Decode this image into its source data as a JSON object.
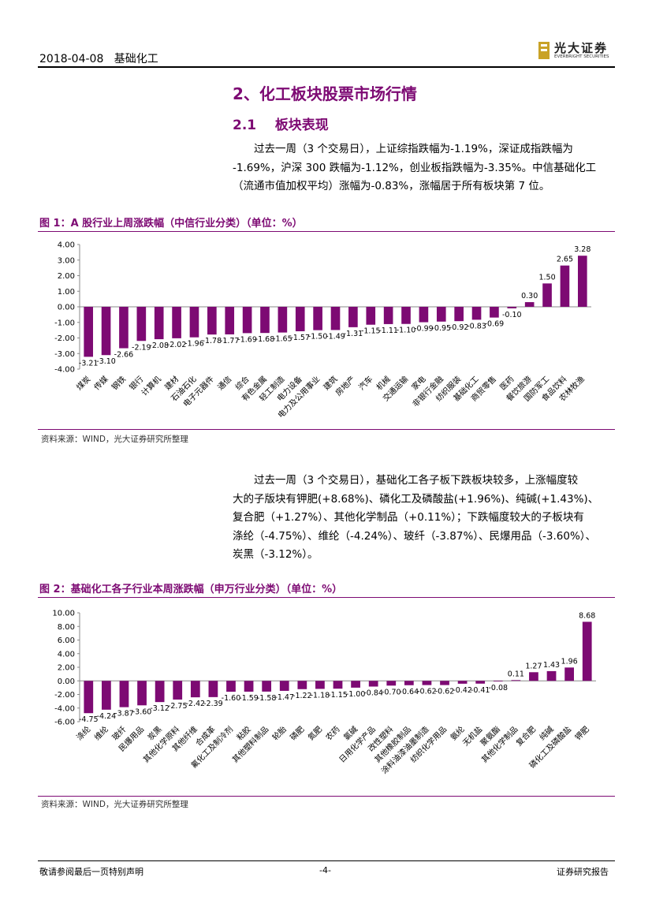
{
  "header": {
    "date": "2018-04-08",
    "category": "基础化工"
  },
  "logo": {
    "name_cn": "光大证券",
    "name_en": "EVERBRIGHT SECURITIES",
    "accent_color": "#c9a227"
  },
  "section": {
    "title": "2、化工板块股票市场行情",
    "sub_num": "2.1",
    "sub_title": "板块表现"
  },
  "para1": {
    "line1": "过去一周（3 个交易日），上证综指跌幅为-1.19%，深证成指跌幅为",
    "line2": "-1.69%，沪深 300 跌幅为-1.12%，创业板指跌幅为-3.35%。中信基础化工",
    "line3": "（流通市值加权平均）涨幅为-0.83%，涨幅居于所有板块第 7 位。"
  },
  "para2": {
    "line1": "过去一周（3 个交易日），基础化工各子板下跌板块较多，上涨幅度较",
    "line2": "大的子版块有钾肥(+8.68%)、磷化工及磷酸盐(+1.96%)、纯碱(+1.43%)、",
    "line3": "复合肥（+1.27%）、其他化学制品（+0.11%）；下跌幅度较大的子板块有",
    "line4": "涤纶（-4.75%）、维纶（-4.24%）、玻纤（-3.87%）、民爆用品（-3.60%）、",
    "line5": "炭黑（-3.12%）。"
  },
  "figure1": {
    "title": "图 1：A 股行业上周涨跌幅（中信行业分类）（单位：%）",
    "source": "资料来源：WIND，光大证券研究所整理"
  },
  "figure2": {
    "title": "图 2：基础化工各子行业本周涨跌幅（申万行业分类）（单位：%）",
    "source": "资料来源：WIND，光大证券研究所整理"
  },
  "chart_data": [
    {
      "type": "bar",
      "title": "A 股行业上周涨跌幅（中信行业分类）（单位：%）",
      "color": "#7d0a73",
      "ylim": [
        -4,
        4
      ],
      "yticks": [
        "4.00",
        "3.00",
        "2.00",
        "1.00",
        "0.00",
        "-1.00",
        "-2.00",
        "-3.00",
        "-4.00"
      ],
      "categories": [
        "煤炭",
        "传媒",
        "钢铁",
        "银行",
        "计算机",
        "建材",
        "石油石化",
        "电子元器件",
        "通信",
        "综合",
        "有色金属",
        "轻工制造",
        "电力设备",
        "电力及公用事业",
        "建筑",
        "房地产",
        "汽车",
        "机械",
        "交通运输",
        "家电",
        "非银行金融",
        "纺织服装",
        "基础化工",
        "商贸零售",
        "医药",
        "餐饮旅游",
        "国防军工",
        "食品饮料",
        "农林牧渔"
      ],
      "values": [
        -3.21,
        -3.1,
        -2.66,
        -2.19,
        -2.08,
        -2.02,
        -1.96,
        -1.78,
        -1.77,
        -1.69,
        -1.68,
        -1.65,
        -1.57,
        -1.5,
        -1.49,
        -1.31,
        -1.15,
        -1.11,
        -1.1,
        -0.99,
        -0.95,
        -0.92,
        -0.83,
        -0.69,
        -0.1,
        0.3,
        1.5,
        2.65,
        3.28
      ],
      "labels": [
        "-3.21",
        "-3.10",
        "-2.66",
        "-2.19",
        "-2.08",
        "-2.02",
        "-1.96",
        "-1.78",
        "-1.77",
        "-1.69",
        "-1.68",
        "-1.65",
        "-1.57",
        "-1.50",
        "-1.49",
        "-1.31",
        "-1.15",
        "-1.11",
        "-1.10",
        "-0.99",
        "-0.95",
        "-0.92",
        "-0.83",
        "-0.69",
        "-0.10",
        "0.30",
        "1.50",
        "2.65",
        "3.28"
      ]
    },
    {
      "type": "bar",
      "title": "基础化工各子行业本周涨跌幅（申万行业分类）（单位：%）",
      "color": "#7d0a73",
      "ylim": [
        -6,
        10
      ],
      "yticks": [
        "10.00",
        "8.00",
        "6.00",
        "4.00",
        "2.00",
        "0.00",
        "-2.00",
        "-4.00",
        "-6.00"
      ],
      "categories": [
        "涤纶",
        "维纶",
        "玻纤",
        "民爆用品",
        "炭黑",
        "其他化学原料",
        "其他纤维",
        "合成革",
        "氟化工及制冷剂",
        "粘胶",
        "其他塑料制品",
        "轮胎",
        "磷肥",
        "氮肥",
        "农药",
        "氯碱",
        "日用化学产品",
        "改性塑料",
        "其他橡胶制品",
        "涂料油漆油墨制造",
        "纺织化学用品",
        "氨纶",
        "无机盐",
        "聚氨酯",
        "其他化学制品",
        "复合肥",
        "纯碱",
        "磷化工及磷酸盐",
        "钾肥"
      ],
      "values": [
        -4.75,
        -4.24,
        -3.87,
        -3.6,
        -3.12,
        -2.75,
        -2.42,
        -2.39,
        -1.6,
        -1.59,
        -1.58,
        -1.47,
        -1.22,
        -1.18,
        -1.15,
        -1.0,
        -0.84,
        -0.7,
        -0.64,
        -0.62,
        -0.62,
        -0.42,
        -0.41,
        -0.08,
        0.11,
        1.27,
        1.43,
        1.96,
        8.68
      ],
      "labels": [
        "-4.75",
        "-4.24",
        "-3.87",
        "-3.60",
        "-3.12",
        "-2.75",
        "-2.42",
        "-2.39",
        "-1.60",
        "-1.59",
        "-1.58",
        "-1.47",
        "-1.22",
        "-1.18",
        "-1.15",
        "-1.00",
        "-0.84",
        "-0.70",
        "-0.64",
        "-0.62",
        "-0.62",
        "-0.42",
        "-0.41",
        "-0.08",
        "0.11",
        "1.27",
        "1.43",
        "1.96",
        "8.68"
      ]
    }
  ],
  "footer": {
    "left": "敬请参阅最后一页特别声明",
    "page": "-4-",
    "right": "证券研究报告"
  }
}
